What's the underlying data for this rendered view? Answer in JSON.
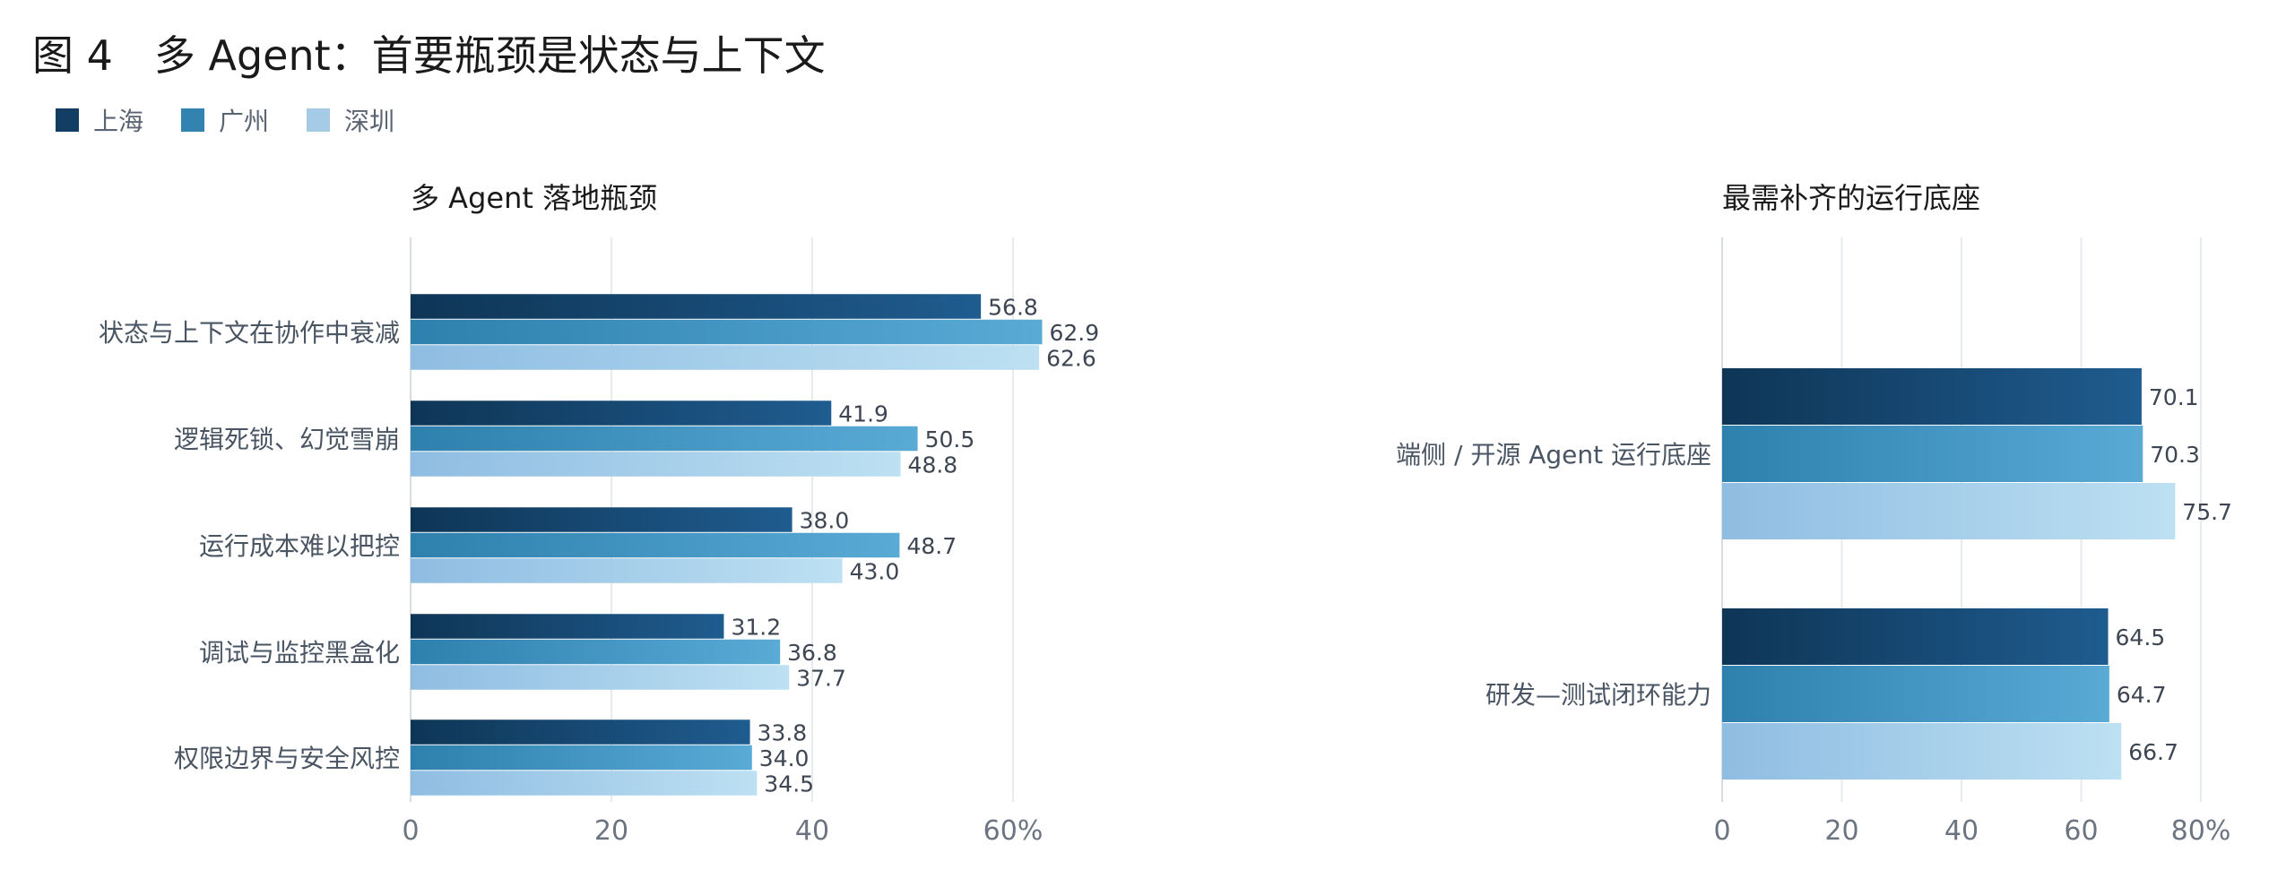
{
  "figure_title": "图 4　多 Agent：首要瓶颈是状态与上下文",
  "legend": [
    {
      "name": "上海",
      "color": "#123e63"
    },
    {
      "name": "广州",
      "color": "#3383b0"
    },
    {
      "name": "深圳",
      "color": "#a5cbe6"
    }
  ],
  "chart_data": [
    {
      "type": "bar",
      "orientation": "horizontal",
      "title": "多 Agent 落地瓶颈",
      "categories": [
        "状态与上下文在协作中衰减",
        "逻辑死锁、幻觉雪崩",
        "运行成本难以把控",
        "调试与监控黑盒化",
        "权限边界与安全风控"
      ],
      "series": [
        {
          "name": "上海",
          "values": [
            56.8,
            41.9,
            38.0,
            31.2,
            33.8
          ]
        },
        {
          "name": "广州",
          "values": [
            62.9,
            50.5,
            48.7,
            36.8,
            34.0
          ]
        },
        {
          "name": "深圳",
          "values": [
            62.6,
            48.8,
            43.0,
            37.7,
            34.5
          ]
        }
      ],
      "xlim": [
        0,
        60
      ],
      "xticks": [
        "0",
        "20",
        "40",
        "60%"
      ],
      "grid": true
    },
    {
      "type": "bar",
      "orientation": "horizontal",
      "title": "最需补齐的运行底座",
      "categories": [
        "端侧 / 开源 Agent 运行底座",
        "研发—测试闭环能力"
      ],
      "series": [
        {
          "name": "上海",
          "values": [
            70.1,
            64.5
          ]
        },
        {
          "name": "广州",
          "values": [
            70.3,
            64.7
          ]
        },
        {
          "name": "深圳",
          "values": [
            75.7,
            66.7
          ]
        }
      ],
      "xlim": [
        0,
        80
      ],
      "xticks": [
        "0",
        "20",
        "40",
        "60",
        "80%"
      ],
      "grid": true
    }
  ]
}
